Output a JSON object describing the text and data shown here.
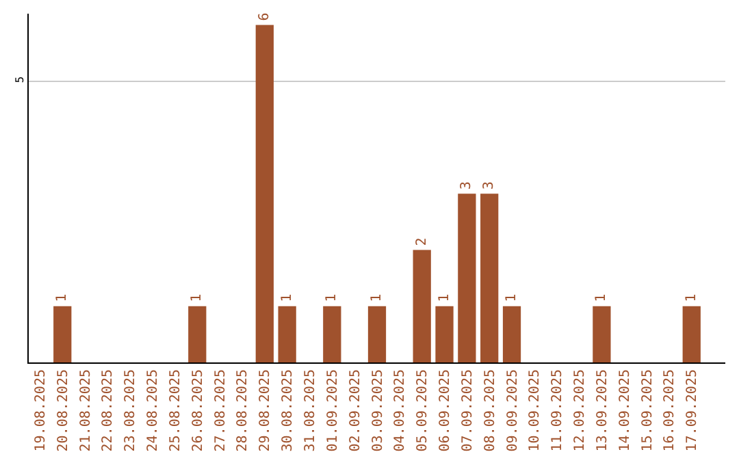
{
  "chart_data": {
    "type": "bar",
    "categories": [
      "19.08.2025",
      "20.08.2025",
      "21.08.2025",
      "22.08.2025",
      "23.08.2025",
      "24.08.2025",
      "25.08.2025",
      "26.08.2025",
      "27.08.2025",
      "28.08.2025",
      "29.08.2025",
      "30.08.2025",
      "31.08.2025",
      "01.09.2025",
      "02.09.2025",
      "03.09.2025",
      "04.09.2025",
      "05.09.2025",
      "06.09.2025",
      "07.09.2025",
      "08.09.2025",
      "09.09.2025",
      "10.09.2025",
      "11.09.2025",
      "12.09.2025",
      "13.09.2025",
      "14.09.2025",
      "15.09.2025",
      "16.09.2025",
      "17.09.2025"
    ],
    "values": [
      0,
      1,
      0,
      0,
      0,
      0,
      0,
      1,
      0,
      0,
      6,
      1,
      0,
      1,
      0,
      1,
      0,
      2,
      1,
      3,
      3,
      1,
      0,
      0,
      0,
      1,
      0,
      0,
      0,
      1
    ],
    "value_labels": [
      null,
      "1",
      null,
      null,
      null,
      null,
      null,
      "1",
      null,
      null,
      "6",
      "1",
      null,
      "1",
      null,
      "1",
      null,
      "2",
      "1",
      "3",
      "3",
      "1",
      null,
      null,
      null,
      "1",
      null,
      null,
      null,
      "1"
    ],
    "color": "#a0522d",
    "ylim": [
      0,
      6.2
    ],
    "yticks": [
      5
    ],
    "grid": "y",
    "legend": false
  }
}
